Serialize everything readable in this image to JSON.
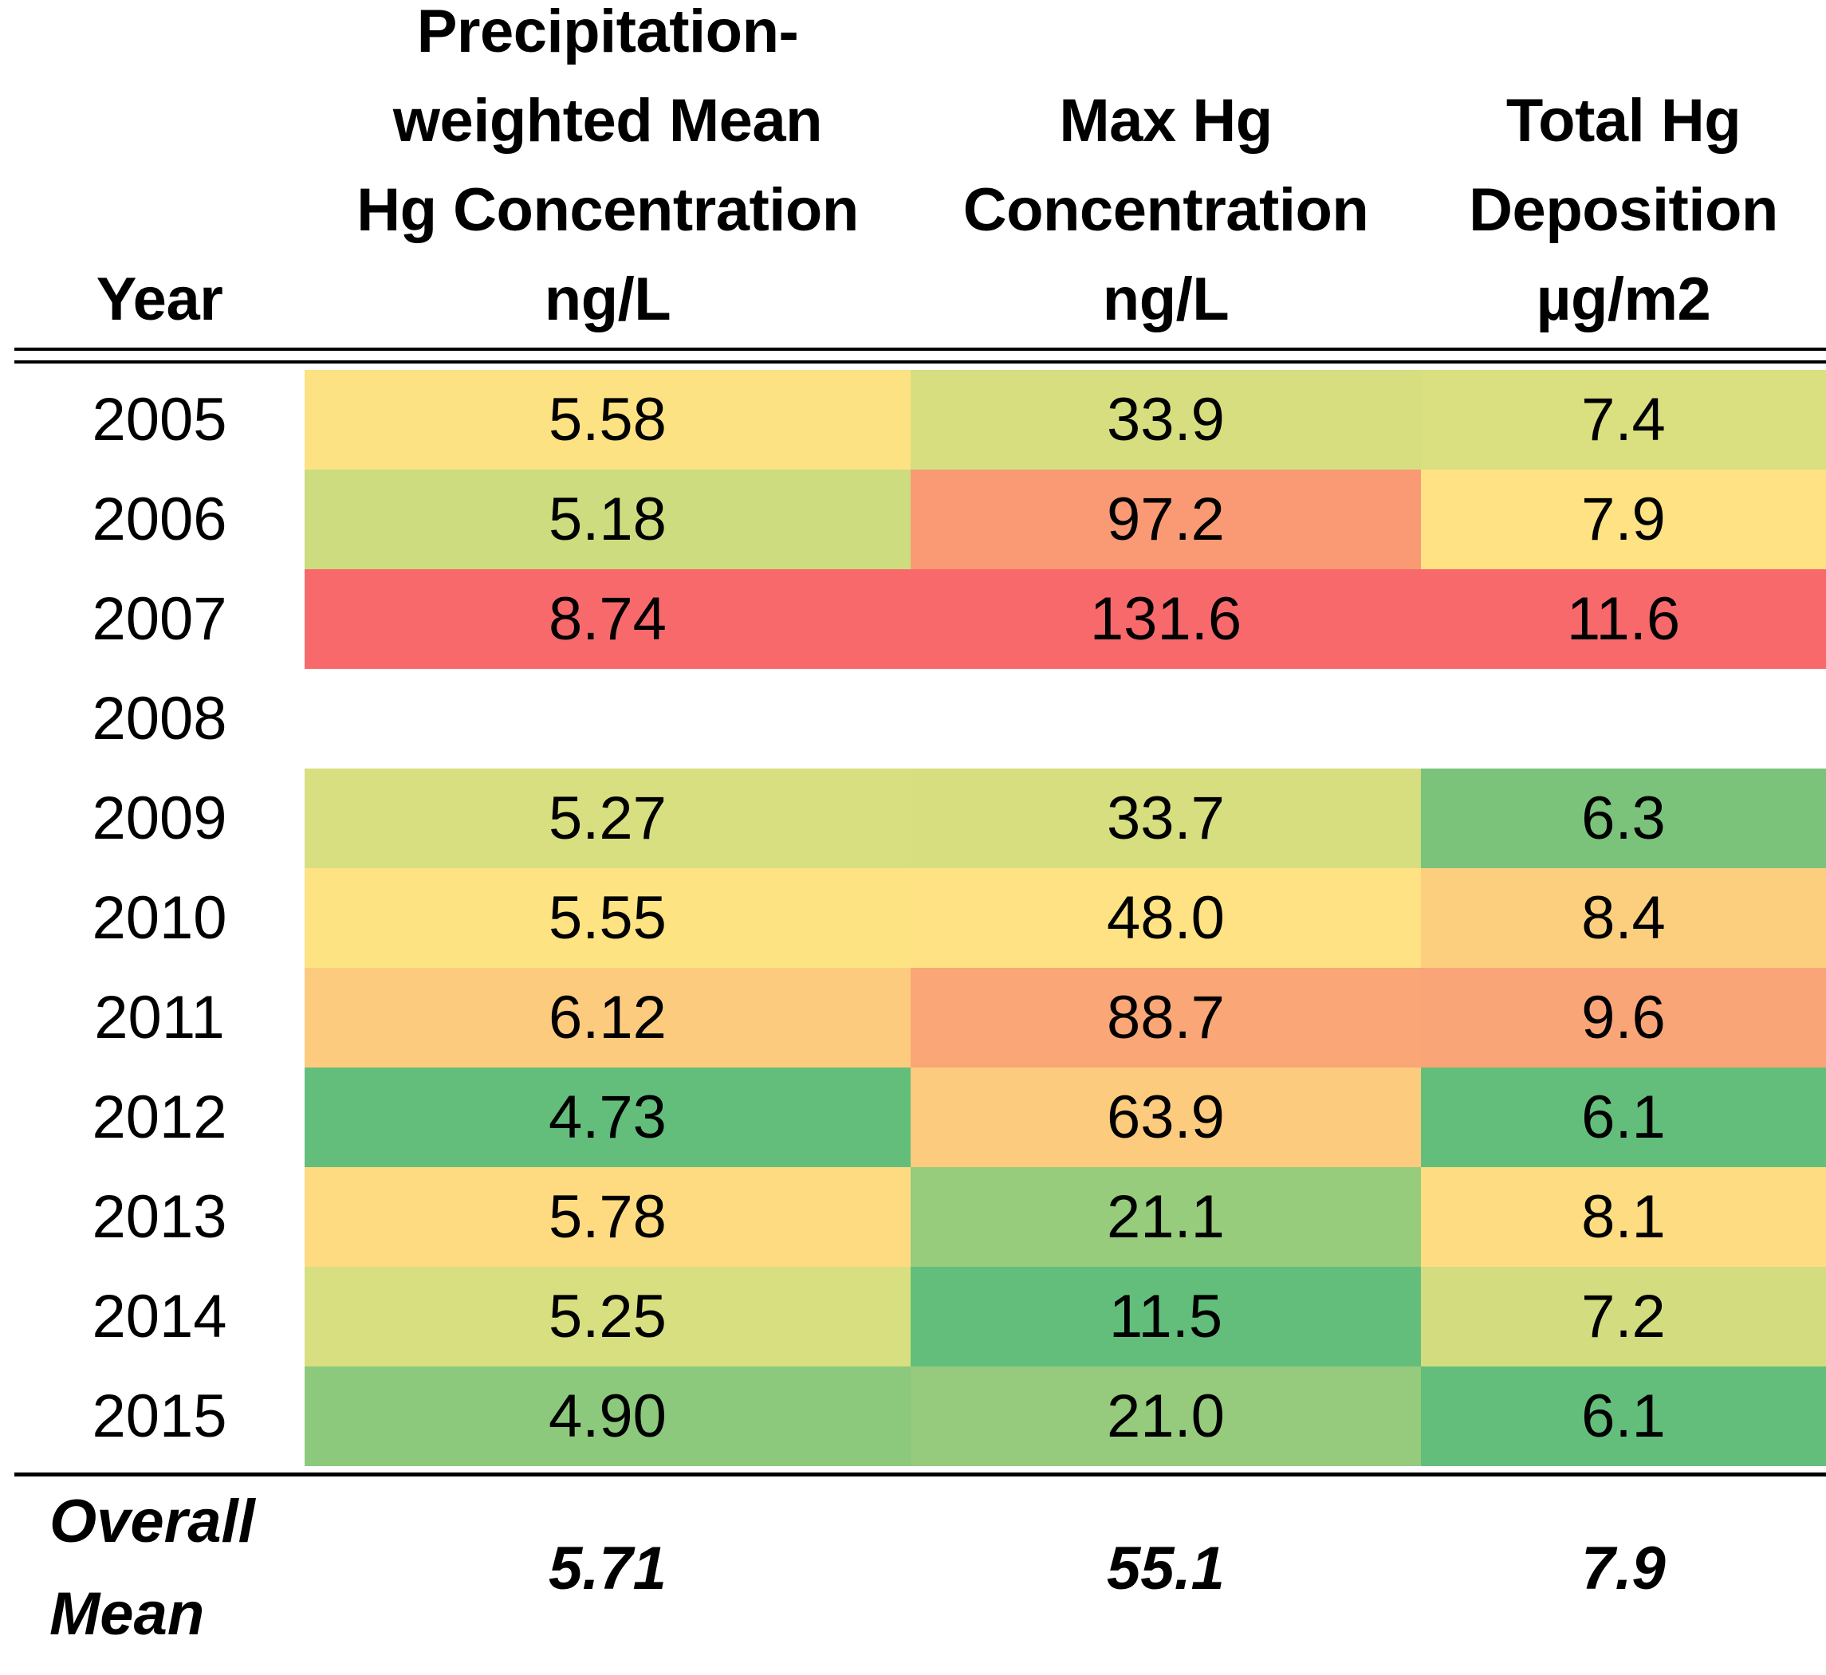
{
  "header": {
    "year": "Year",
    "mean": [
      "Precipitation-",
      "weighted Mean",
      "Hg Concentration",
      "ng/L"
    ],
    "max": [
      "Max Hg",
      "Concentration",
      "ng/L"
    ],
    "deposition": [
      "Total Hg",
      "Deposition",
      "µg/m2"
    ]
  },
  "rows": [
    {
      "year": "2005",
      "mean": "5.58",
      "max": "33.9",
      "dep": "7.4",
      "colors": {
        "mean": "#fde283",
        "max": "#d6de7f",
        "dep": "#dadf80"
      }
    },
    {
      "year": "2006",
      "mean": "5.18",
      "max": "97.2",
      "dep": "7.9",
      "colors": {
        "mean": "#ccdc7e",
        "max": "#f99a74",
        "dep": "#fee283"
      }
    },
    {
      "year": "2007",
      "mean": "8.74",
      "max": "131.6",
      "dep": "11.6",
      "colors": {
        "mean": "#f8696b",
        "max": "#f8696b",
        "dep": "#f8696b"
      }
    },
    {
      "year": "2008",
      "mean": "",
      "max": "",
      "dep": "",
      "colors": {
        "mean": "#ffffff",
        "max": "#ffffff",
        "dep": "#ffffff"
      }
    },
    {
      "year": "2009",
      "mean": "5.27",
      "max": "33.7",
      "dep": "6.3",
      "colors": {
        "mean": "#d8df80",
        "max": "#d6de7f",
        "dep": "#7bc37b"
      }
    },
    {
      "year": "2010",
      "mean": "5.55",
      "max": "48.0",
      "dep": "8.4",
      "colors": {
        "mean": "#fee383",
        "max": "#fee283",
        "dep": "#fccf7f"
      }
    },
    {
      "year": "2011",
      "mean": "6.12",
      "max": "88.7",
      "dep": "9.6",
      "colors": {
        "mean": "#fdcb7e",
        "max": "#faa676",
        "dep": "#faa577"
      }
    },
    {
      "year": "2012",
      "mean": "4.73",
      "max": "63.9",
      "dep": "6.1",
      "colors": {
        "mean": "#63be7b",
        "max": "#fdcb7e",
        "dep": "#63be7b"
      }
    },
    {
      "year": "2013",
      "mean": "5.78",
      "max": "21.1",
      "dep": "8.1",
      "colors": {
        "mean": "#fedb81",
        "max": "#97cc7d",
        "dep": "#fddc82"
      }
    },
    {
      "year": "2014",
      "mean": "5.25",
      "max": "11.5",
      "dep": "7.2",
      "colors": {
        "mean": "#d8df80",
        "max": "#63be7b",
        "dep": "#d3dd7f"
      }
    },
    {
      "year": "2015",
      "mean": "4.90",
      "max": "21.0",
      "dep": "6.1",
      "colors": {
        "mean": "#8cc97c",
        "max": "#96cb7d",
        "dep": "#63be7b"
      }
    }
  ],
  "footer": {
    "label": [
      "Overall",
      "Mean"
    ],
    "mean": "5.71",
    "max": "55.1",
    "dep": "7.9"
  }
}
